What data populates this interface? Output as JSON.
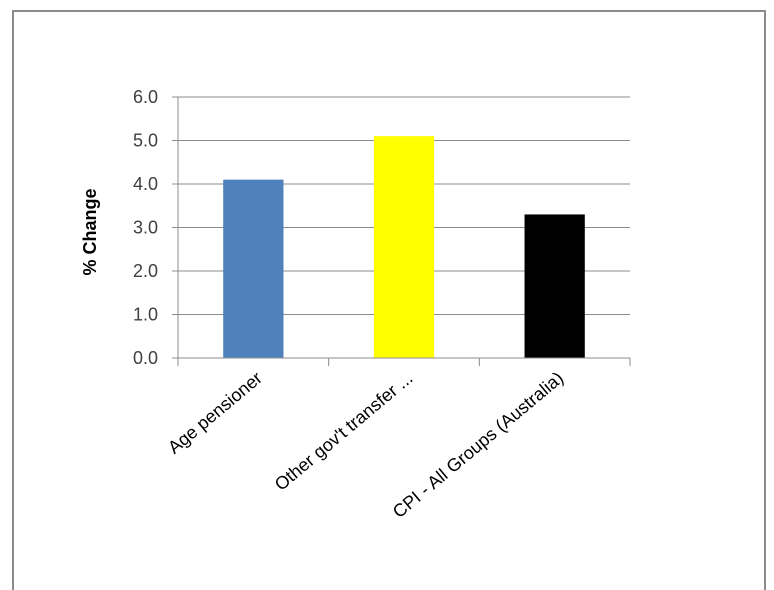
{
  "chart_data": {
    "type": "bar",
    "categories": [
      "Age pensioner",
      "Other gov't transfer ...",
      "CPI - All Groups (Australia)"
    ],
    "values": [
      4.1,
      5.1,
      3.3
    ],
    "colors": [
      "#4f81bd",
      "#ffff00",
      "#000000"
    ],
    "ylabel": "% Change",
    "ylim": [
      0,
      6
    ],
    "yticks": [
      "0.0",
      "1.0",
      "2.0",
      "3.0",
      "4.0",
      "5.0",
      "6.0"
    ],
    "grid": true,
    "legend": "none"
  }
}
